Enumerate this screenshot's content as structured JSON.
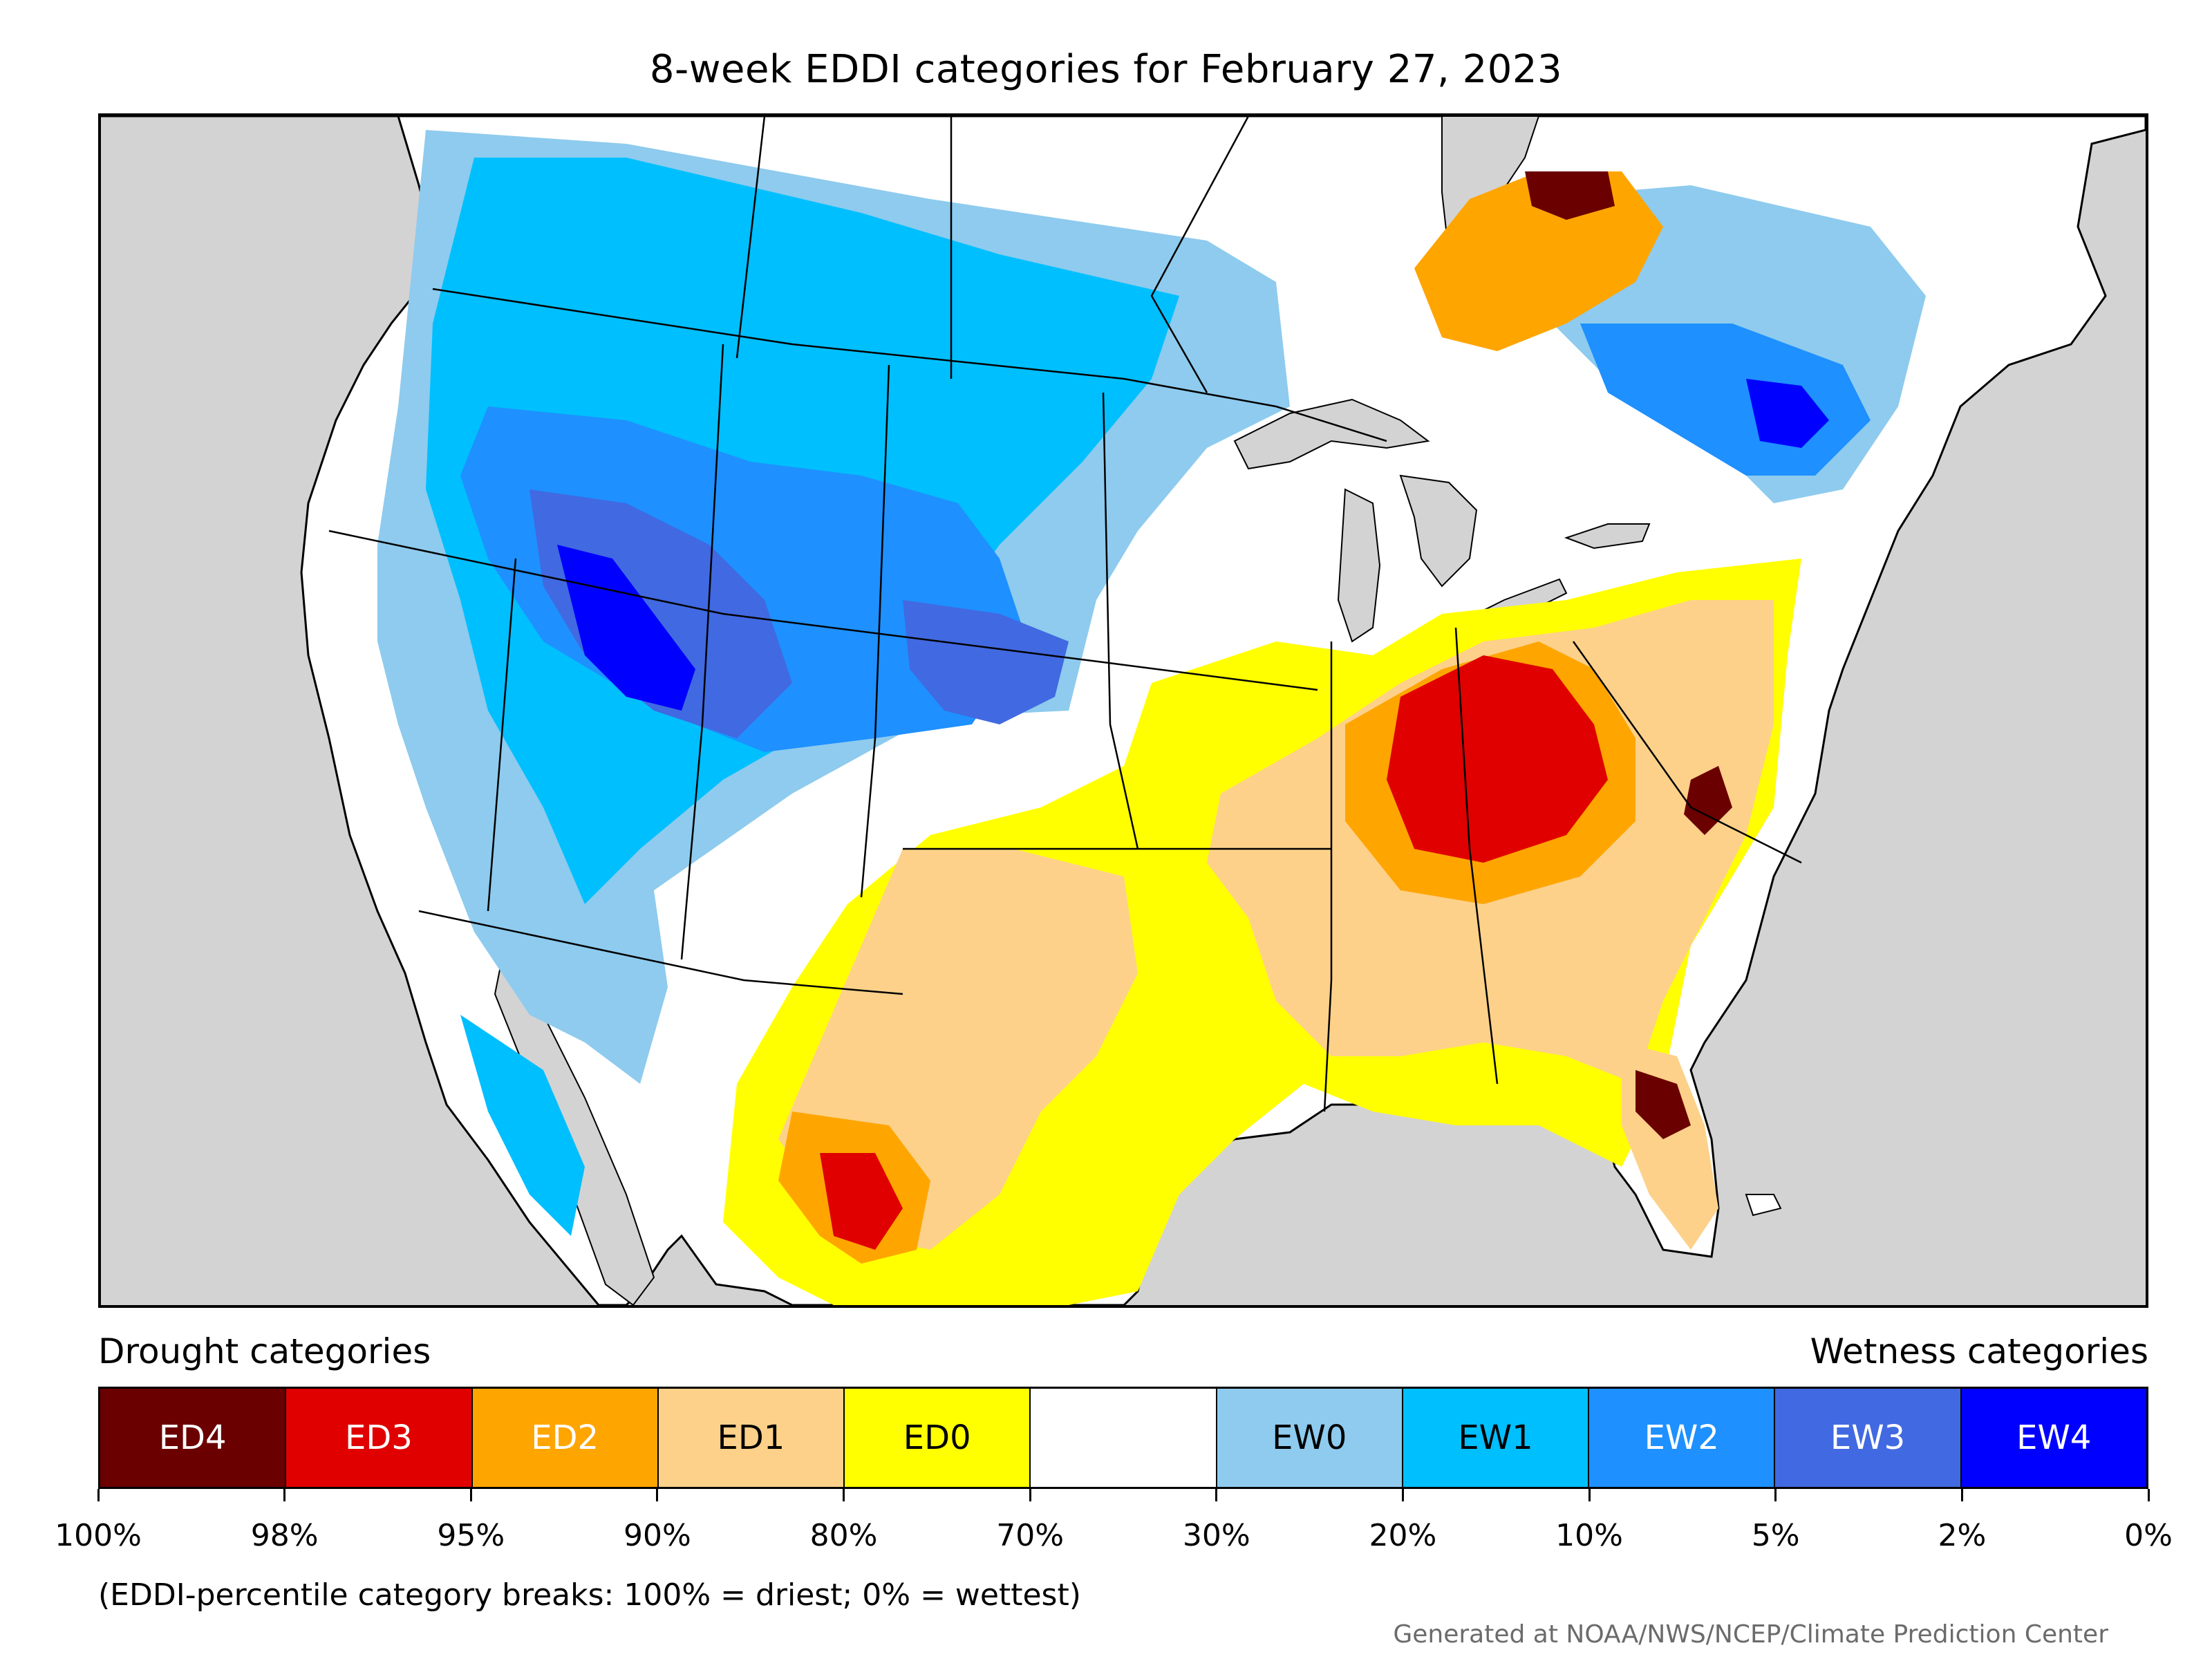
{
  "title": "8-week EDDI categories for February 27, 2023",
  "legend": {
    "drought_heading": "Drought categories",
    "wetness_heading": "Wetness categories",
    "categories": [
      {
        "label": "ED4",
        "color": "#6b0000",
        "text_color": "#ffffff"
      },
      {
        "label": "ED3",
        "color": "#e00000",
        "text_color": "#ffffff"
      },
      {
        "label": "ED2",
        "color": "#ffa500",
        "text_color": "#ffffff"
      },
      {
        "label": "ED1",
        "color": "#fdd18a",
        "text_color": "#000000"
      },
      {
        "label": "ED0",
        "color": "#ffff00",
        "text_color": "#000000"
      },
      {
        "label": "",
        "color": "#ffffff",
        "text_color": "#000000"
      },
      {
        "label": "EW0",
        "color": "#8ecbee",
        "text_color": "#000000"
      },
      {
        "label": "EW1",
        "color": "#00bfff",
        "text_color": "#000000"
      },
      {
        "label": "EW2",
        "color": "#1e90ff",
        "text_color": "#ffffff"
      },
      {
        "label": "EW3",
        "color": "#4169e1",
        "text_color": "#ffffff"
      },
      {
        "label": "EW4",
        "color": "#0000ff",
        "text_color": "#ffffff"
      }
    ],
    "tick_labels": [
      "100%",
      "98%",
      "95%",
      "90%",
      "80%",
      "70%",
      "30%",
      "20%",
      "10%",
      "5%",
      "2%",
      "0%"
    ]
  },
  "note": "(EDDI-percentile category breaks: 100% = driest; 0% = wettest)",
  "credit": "Generated at NOAA/NWS/NCEP/Climate Prediction Center",
  "map": {
    "ocean_color": "#d3d3d3",
    "land_color": "#ffffff",
    "border_color": "#000000"
  }
}
